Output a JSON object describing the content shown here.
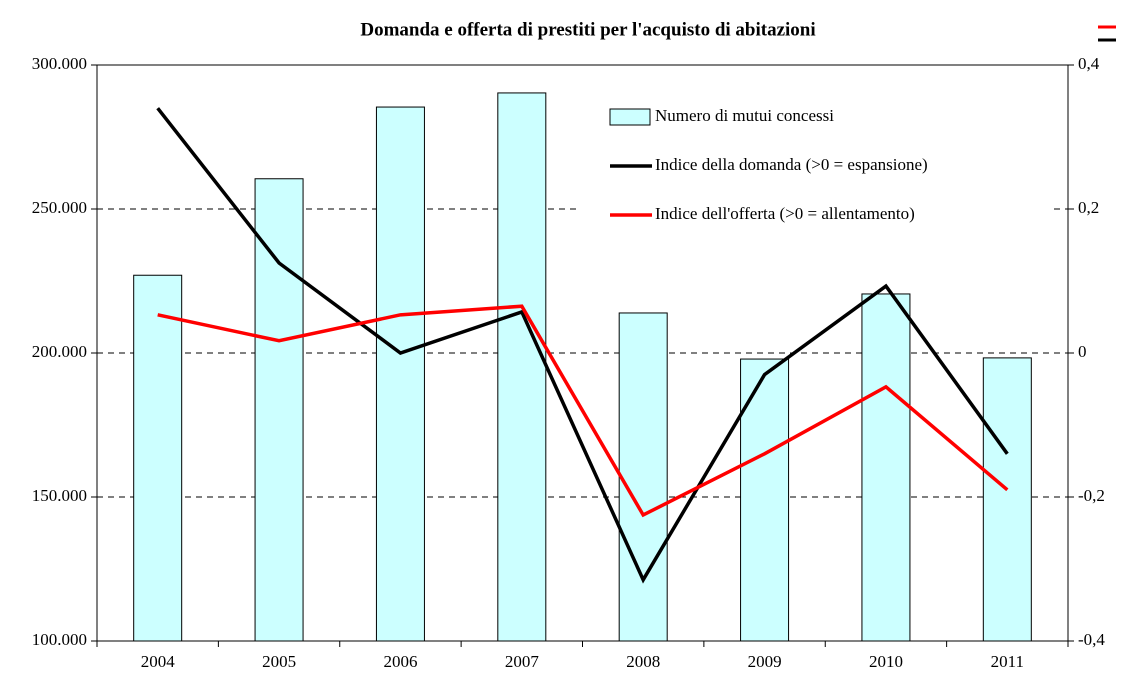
{
  "chart_data": {
    "type": "bar",
    "title": "Domanda e offerta di prestiti per l'acquisto di abitazioni",
    "categories": [
      "2004",
      "2005",
      "2006",
      "2007",
      "2008",
      "2009",
      "2010",
      "2011"
    ],
    "series": [
      {
        "name": "Numero di mutui concessi",
        "type": "bar",
        "color": "#ccffff",
        "values": [
          227000,
          260500,
          285400,
          290300,
          213900,
          197900,
          220500,
          198300
        ]
      },
      {
        "name": "Indice della domanda (>0 = espansione)",
        "type": "line",
        "axis": "y2",
        "color": "#000000",
        "values": [
          0.34,
          0.125,
          0,
          0.057,
          -0.315,
          -0.03,
          0.093,
          -0.14
        ]
      },
      {
        "name": "Indice dell'offerta (>0 = allentamento)",
        "type": "line",
        "axis": "y2",
        "color": "#ff0000",
        "values": [
          0.053,
          0.017,
          0.053,
          0.065,
          -0.225,
          -0.14,
          -0.047,
          -0.19
        ]
      }
    ],
    "ylim": [
      100000,
      300000
    ],
    "yticks": [
      {
        "value": 100000,
        "label": "100.000"
      },
      {
        "value": 150000,
        "label": "150.000"
      },
      {
        "value": 200000,
        "label": "200.000"
      },
      {
        "value": 250000,
        "label": "250.000"
      },
      {
        "value": 300000,
        "label": "300.000"
      }
    ],
    "y2lim": [
      -0.4,
      0.4
    ],
    "y2ticks": [
      {
        "value": -0.4,
        "label": "-0,4"
      },
      {
        "value": -0.2,
        "label": "-0,2"
      },
      0,
      {
        "value": 0.2,
        "label": "0,2"
      },
      {
        "value": 0.4,
        "label": "0,4"
      }
    ],
    "grid": true
  }
}
